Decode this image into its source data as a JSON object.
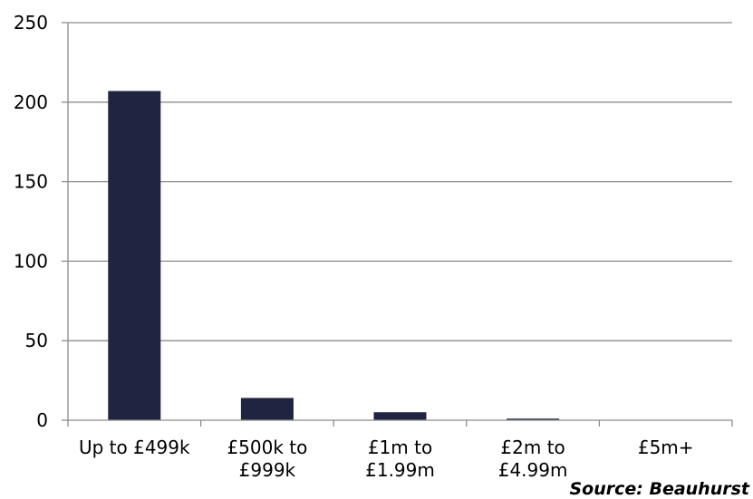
{
  "chart_data": {
    "type": "bar",
    "categories": [
      [
        "Up to £499k"
      ],
      [
        "£500k to",
        "£999k"
      ],
      [
        "£1m to",
        "£1.99m"
      ],
      [
        "£2m to",
        "£4.99m"
      ],
      [
        "£5m+"
      ]
    ],
    "values": [
      207,
      14,
      5,
      1,
      0
    ],
    "ylim": [
      0,
      250
    ],
    "yticks": [
      0,
      50,
      100,
      150,
      200,
      250
    ],
    "grid": true,
    "bar_color": "#1f2440",
    "grid_color": "#8c8c8c",
    "source": "Source: Beauhurst"
  }
}
